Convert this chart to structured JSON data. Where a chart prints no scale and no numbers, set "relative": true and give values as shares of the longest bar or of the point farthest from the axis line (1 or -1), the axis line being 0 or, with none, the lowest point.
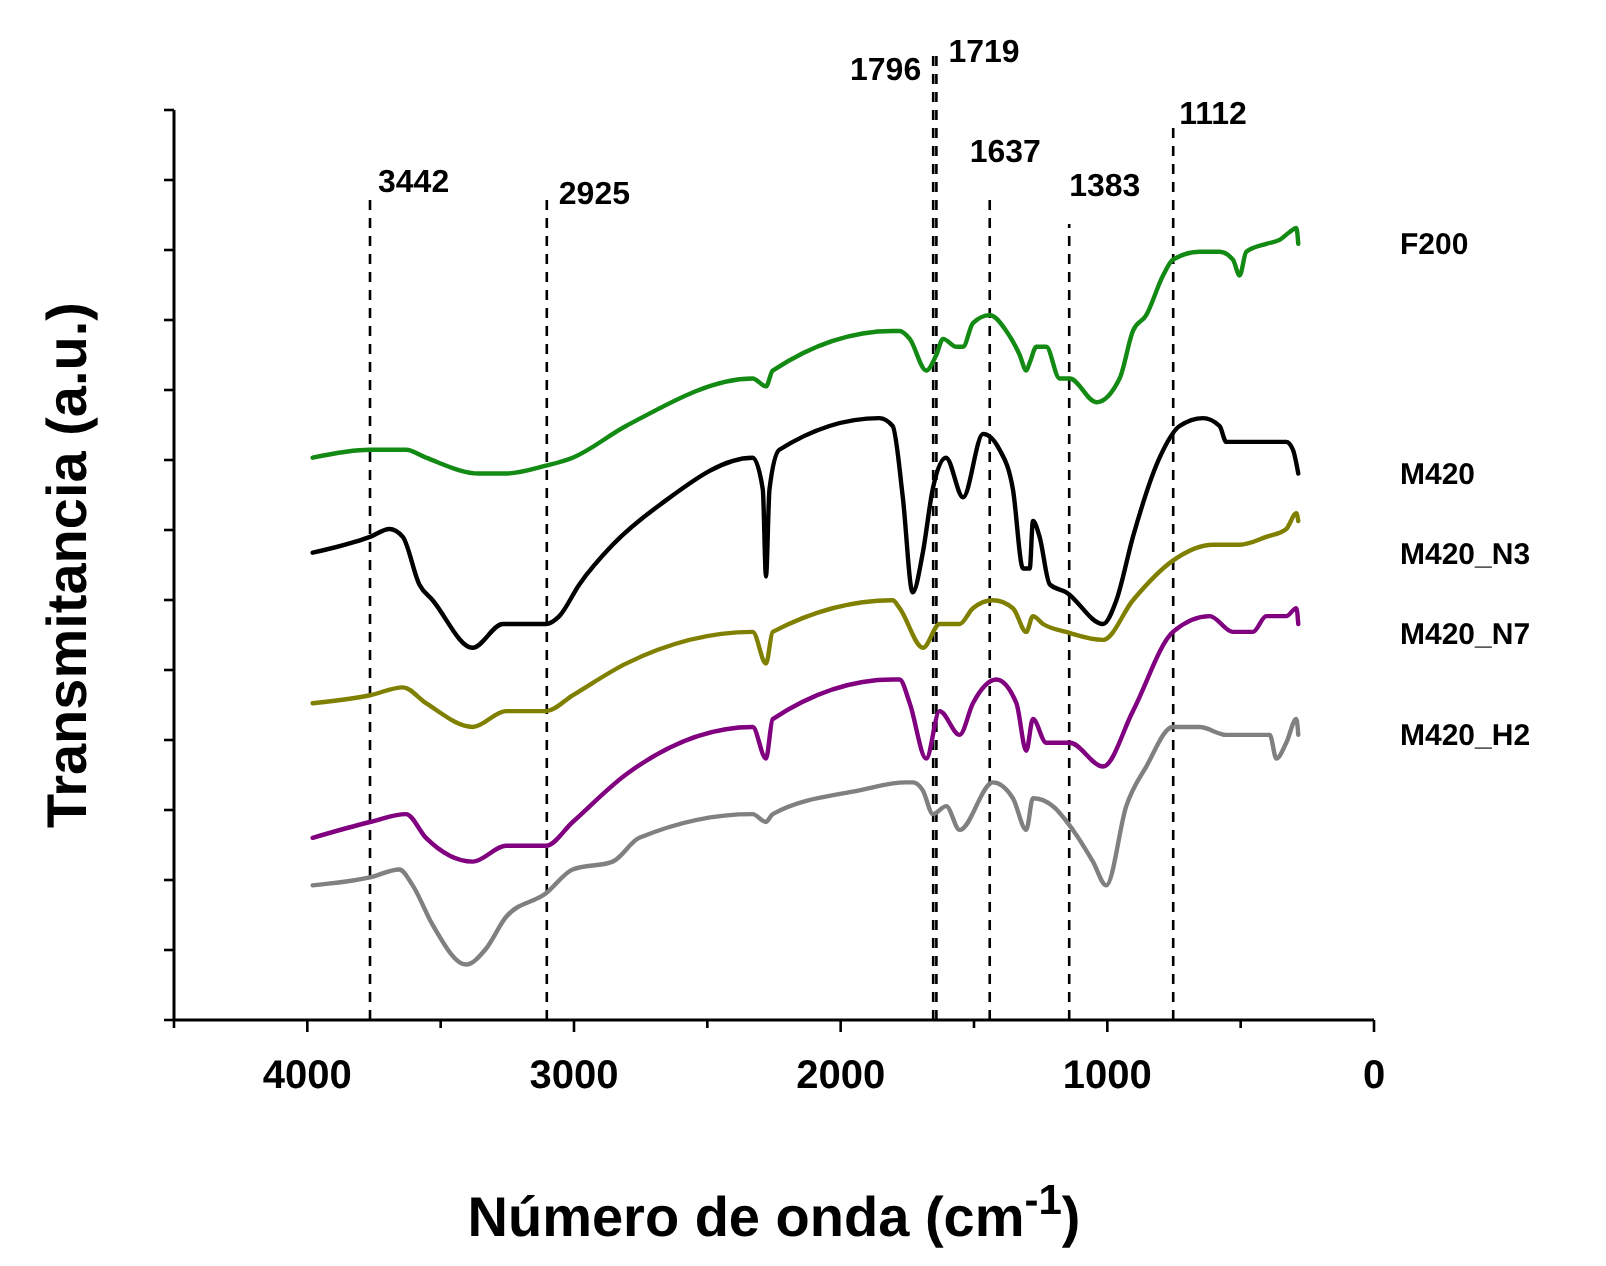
{
  "chart_data": {
    "type": "line",
    "xlabel": "Número de onda (cm$^{-1}$)",
    "ylabel": "Transmitancia (a.u.)",
    "relative": true,
    "xlim": [
      4500,
      0
    ],
    "xticks": [
      {
        "value": 4500,
        "label": null
      },
      4000,
      {
        "value": 3500,
        "label": null
      },
      3000,
      {
        "value": 2500,
        "label": null
      },
      2000,
      {
        "value": 1500,
        "label": null
      },
      1000,
      {
        "value": 500,
        "label": null
      },
      0
    ],
    "line_style": "solid",
    "annotations": [
      "3442",
      "2925",
      "1796",
      "1719",
      "1637",
      "1383",
      "1112"
    ],
    "ref_lines": [
      {
        "axis": "x",
        "value": 3765,
        "color": "#000000",
        "line_style": "dashed"
      },
      {
        "axis": "x",
        "value": 3102,
        "color": "#000000",
        "line_style": "dashed"
      },
      {
        "axis": "x",
        "value": 1653,
        "color": "#000000",
        "line_style": "dashed"
      },
      {
        "axis": "x",
        "value": 1641,
        "color": "#000000",
        "line_style": "dashed"
      },
      {
        "axis": "x",
        "value": 1441,
        "color": "#000000",
        "line_style": "dashed"
      },
      {
        "axis": "x",
        "value": 1143,
        "color": "#000000",
        "line_style": "dashed"
      },
      {
        "axis": "x",
        "value": 753,
        "color": "#000000",
        "line_style": "dashed"
      }
    ],
    "series": [
      {
        "name": "F200",
        "color": "#138a13",
        "x": [
          3980,
          3765,
          3630,
          3555,
          3355,
          3255,
          3105,
          3005,
          2805,
          2330,
          2280,
          2255,
          1805,
          1779,
          1741,
          1679,
          1641,
          1616,
          1566,
          1541,
          1504,
          1441,
          1379,
          1329,
          1304,
          1291,
          1266,
          1229,
          1179,
          1141,
          1041,
          954,
          904,
          854,
          791,
          754,
          654,
          579,
          529,
          504,
          479,
          404,
          354,
          316,
          291,
          284
        ],
        "values": [
          0.71,
          0.72,
          0.72,
          0.71,
          0.69,
          0.69,
          0.7,
          0.71,
          0.75,
          0.81,
          0.8,
          0.82,
          0.87,
          0.87,
          0.86,
          0.82,
          0.84,
          0.86,
          0.85,
          0.85,
          0.88,
          0.89,
          0.87,
          0.84,
          0.82,
          0.83,
          0.85,
          0.85,
          0.81,
          0.81,
          0.78,
          0.81,
          0.87,
          0.89,
          0.94,
          0.96,
          0.97,
          0.97,
          0.96,
          0.94,
          0.97,
          0.98,
          0.985,
          0.995,
          1.0,
          0.98
        ]
      },
      {
        "name": "M420",
        "color": "#000000",
        "x": [
          3980,
          3765,
          3692,
          3642,
          3580,
          3530,
          3380,
          3267,
          3105,
          3055,
          2980,
          2855,
          2680,
          2330,
          2292,
          2280,
          2267,
          2230,
          1855,
          1805,
          1767,
          1730,
          1692,
          1655,
          1605,
          1541,
          1466,
          1404,
          1354,
          1316,
          1291,
          1279,
          1254,
          1216,
          1154,
          1016,
          966,
          904,
          804,
          729,
          641,
          579,
          554,
          454,
          404,
          329,
          304,
          284
        ],
        "values": [
          0.59,
          0.61,
          0.62,
          0.61,
          0.55,
          0.53,
          0.47,
          0.5,
          0.5,
          0.51,
          0.55,
          0.6,
          0.65,
          0.71,
          0.67,
          0.56,
          0.67,
          0.72,
          0.76,
          0.75,
          0.66,
          0.54,
          0.59,
          0.67,
          0.71,
          0.66,
          0.74,
          0.72,
          0.67,
          0.57,
          0.57,
          0.63,
          0.61,
          0.55,
          0.54,
          0.5,
          0.53,
          0.61,
          0.71,
          0.75,
          0.76,
          0.75,
          0.73,
          0.73,
          0.73,
          0.73,
          0.72,
          0.69
        ]
      },
      {
        "name": "M420_N3",
        "color": "#808000",
        "x": [
          3980,
          3765,
          3642,
          3555,
          3380,
          3255,
          3105,
          3005,
          2805,
          2330,
          2280,
          2255,
          1805,
          1779,
          1691,
          1629,
          1554,
          1504,
          1429,
          1354,
          1304,
          1279,
          1241,
          1154,
          1016,
          904,
          754,
          604,
          504,
          404,
          329,
          291,
          284
        ],
        "values": [
          0.4,
          0.41,
          0.42,
          0.4,
          0.37,
          0.39,
          0.39,
          0.41,
          0.45,
          0.49,
          0.45,
          0.49,
          0.53,
          0.52,
          0.47,
          0.5,
          0.5,
          0.52,
          0.53,
          0.52,
          0.49,
          0.51,
          0.5,
          0.49,
          0.48,
          0.53,
          0.58,
          0.6,
          0.6,
          0.61,
          0.62,
          0.64,
          0.63
        ]
      },
      {
        "name": "M420_N7",
        "color": "#800080",
        "x": [
          3980,
          3765,
          3630,
          3555,
          3380,
          3255,
          3105,
          3005,
          2805,
          2330,
          2280,
          2255,
          1805,
          1779,
          1741,
          1679,
          1629,
          1554,
          1504,
          1416,
          1341,
          1304,
          1279,
          1229,
          1141,
          1016,
          904,
          754,
          616,
          529,
          454,
          404,
          329,
          291,
          284
        ],
        "values": [
          0.23,
          0.25,
          0.26,
          0.23,
          0.2,
          0.22,
          0.22,
          0.25,
          0.31,
          0.37,
          0.33,
          0.38,
          0.43,
          0.43,
          0.4,
          0.33,
          0.39,
          0.36,
          0.4,
          0.43,
          0.4,
          0.34,
          0.38,
          0.35,
          0.35,
          0.32,
          0.39,
          0.49,
          0.51,
          0.49,
          0.49,
          0.51,
          0.51,
          0.52,
          0.5
        ]
      },
      {
        "name": "M420_H2",
        "color": "#808080",
        "x": [
          3980,
          3765,
          3655,
          3605,
          3530,
          3405,
          3330,
          3255,
          3105,
          3005,
          2855,
          2755,
          2330,
          2280,
          2255,
          1930,
          1755,
          1729,
          1692,
          1654,
          1604,
          1554,
          1429,
          1354,
          1304,
          1279,
          1204,
          1129,
          1054,
          1004,
          929,
          854,
          754,
          654,
          554,
          429,
          391,
          366,
          329,
          291,
          284
        ],
        "values": [
          0.17,
          0.18,
          0.19,
          0.17,
          0.12,
          0.07,
          0.09,
          0.13,
          0.16,
          0.19,
          0.2,
          0.23,
          0.26,
          0.25,
          0.26,
          0.29,
          0.3,
          0.3,
          0.29,
          0.26,
          0.27,
          0.24,
          0.3,
          0.28,
          0.24,
          0.28,
          0.27,
          0.24,
          0.2,
          0.17,
          0.27,
          0.32,
          0.37,
          0.37,
          0.36,
          0.36,
          0.36,
          0.33,
          0.35,
          0.38,
          0.36
        ]
      }
    ]
  }
}
